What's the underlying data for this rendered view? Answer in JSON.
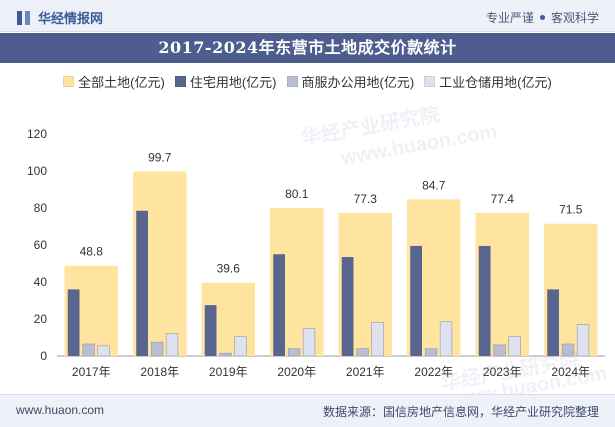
{
  "header": {
    "brand": "华经情报网",
    "tagline_left": "专业严谨",
    "tagline_right": "客观科学"
  },
  "title": "2017-2024年东营市土地成交价款统计",
  "footer": {
    "website": "www.huaon.com",
    "source": "数据来源：国信房地产信息网，华经产业研究院整理"
  },
  "watermarks": [
    "华经产业研究院",
    "www.huaon.com",
    "华经产业研究院",
    "www.huaon.com"
  ],
  "colors": {
    "total": "#ffe4a0",
    "residential": "#58668f",
    "commercial": "#b8bfd0",
    "industrial": "#dde2ee"
  },
  "chart_data": {
    "type": "bar",
    "categories": [
      "2017年",
      "2018年",
      "2019年",
      "2020年",
      "2021年",
      "2022年",
      "2023年",
      "2024年"
    ],
    "series": [
      {
        "name": "全部土地(亿元)",
        "values": [
          48.8,
          99.7,
          39.6,
          80.1,
          77.3,
          84.7,
          77.4,
          71.5
        ]
      },
      {
        "name": "住宅用地(亿元)",
        "values": [
          36,
          78.5,
          27.5,
          55,
          53.5,
          59.5,
          59.5,
          36
        ]
      },
      {
        "name": "商服办公用地(亿元)",
        "values": [
          6.5,
          7.5,
          1.5,
          4,
          4,
          4,
          6,
          6.5
        ]
      },
      {
        "name": "工业仓储用地(亿元)",
        "values": [
          5.5,
          12,
          10.5,
          15,
          18,
          18.5,
          10.5,
          17
        ]
      }
    ],
    "data_labels": [
      "48.8",
      "99.7",
      "39.6",
      "80.1",
      "77.3",
      "84.7",
      "77.4",
      "71.5"
    ],
    "y_ticks": [
      "0",
      "20",
      "40",
      "60",
      "80",
      "100",
      "120"
    ],
    "ylim": [
      0,
      120
    ],
    "grid": false,
    "legend_position": "top"
  }
}
